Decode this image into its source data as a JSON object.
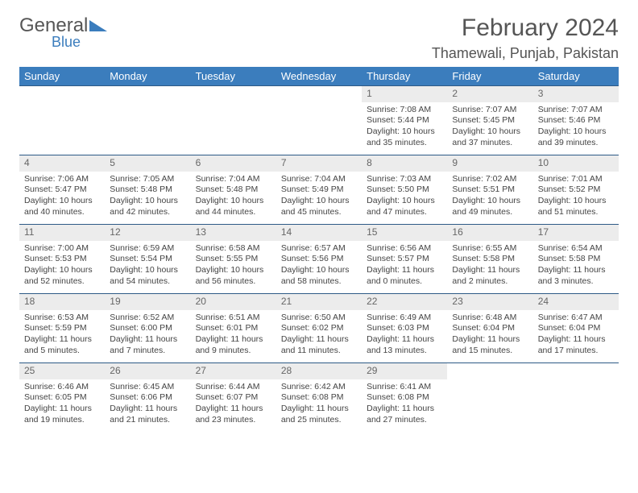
{
  "brand": {
    "general": "General",
    "blue": "Blue"
  },
  "title": "February 2024",
  "location": "Thamewali, Punjab, Pakistan",
  "colors": {
    "header_bg": "#3b7dbd",
    "daynum_bg": "#ececec",
    "rule": "#2d5a86",
    "text": "#444444"
  },
  "day_headers": [
    "Sunday",
    "Monday",
    "Tuesday",
    "Wednesday",
    "Thursday",
    "Friday",
    "Saturday"
  ],
  "weeks": [
    [
      null,
      null,
      null,
      null,
      {
        "n": "1",
        "sr": "Sunrise: 7:08 AM",
        "ss": "Sunset: 5:44 PM",
        "dl1": "Daylight: 10 hours",
        "dl2": "and 35 minutes."
      },
      {
        "n": "2",
        "sr": "Sunrise: 7:07 AM",
        "ss": "Sunset: 5:45 PM",
        "dl1": "Daylight: 10 hours",
        "dl2": "and 37 minutes."
      },
      {
        "n": "3",
        "sr": "Sunrise: 7:07 AM",
        "ss": "Sunset: 5:46 PM",
        "dl1": "Daylight: 10 hours",
        "dl2": "and 39 minutes."
      }
    ],
    [
      {
        "n": "4",
        "sr": "Sunrise: 7:06 AM",
        "ss": "Sunset: 5:47 PM",
        "dl1": "Daylight: 10 hours",
        "dl2": "and 40 minutes."
      },
      {
        "n": "5",
        "sr": "Sunrise: 7:05 AM",
        "ss": "Sunset: 5:48 PM",
        "dl1": "Daylight: 10 hours",
        "dl2": "and 42 minutes."
      },
      {
        "n": "6",
        "sr": "Sunrise: 7:04 AM",
        "ss": "Sunset: 5:48 PM",
        "dl1": "Daylight: 10 hours",
        "dl2": "and 44 minutes."
      },
      {
        "n": "7",
        "sr": "Sunrise: 7:04 AM",
        "ss": "Sunset: 5:49 PM",
        "dl1": "Daylight: 10 hours",
        "dl2": "and 45 minutes."
      },
      {
        "n": "8",
        "sr": "Sunrise: 7:03 AM",
        "ss": "Sunset: 5:50 PM",
        "dl1": "Daylight: 10 hours",
        "dl2": "and 47 minutes."
      },
      {
        "n": "9",
        "sr": "Sunrise: 7:02 AM",
        "ss": "Sunset: 5:51 PM",
        "dl1": "Daylight: 10 hours",
        "dl2": "and 49 minutes."
      },
      {
        "n": "10",
        "sr": "Sunrise: 7:01 AM",
        "ss": "Sunset: 5:52 PM",
        "dl1": "Daylight: 10 hours",
        "dl2": "and 51 minutes."
      }
    ],
    [
      {
        "n": "11",
        "sr": "Sunrise: 7:00 AM",
        "ss": "Sunset: 5:53 PM",
        "dl1": "Daylight: 10 hours",
        "dl2": "and 52 minutes."
      },
      {
        "n": "12",
        "sr": "Sunrise: 6:59 AM",
        "ss": "Sunset: 5:54 PM",
        "dl1": "Daylight: 10 hours",
        "dl2": "and 54 minutes."
      },
      {
        "n": "13",
        "sr": "Sunrise: 6:58 AM",
        "ss": "Sunset: 5:55 PM",
        "dl1": "Daylight: 10 hours",
        "dl2": "and 56 minutes."
      },
      {
        "n": "14",
        "sr": "Sunrise: 6:57 AM",
        "ss": "Sunset: 5:56 PM",
        "dl1": "Daylight: 10 hours",
        "dl2": "and 58 minutes."
      },
      {
        "n": "15",
        "sr": "Sunrise: 6:56 AM",
        "ss": "Sunset: 5:57 PM",
        "dl1": "Daylight: 11 hours",
        "dl2": "and 0 minutes."
      },
      {
        "n": "16",
        "sr": "Sunrise: 6:55 AM",
        "ss": "Sunset: 5:58 PM",
        "dl1": "Daylight: 11 hours",
        "dl2": "and 2 minutes."
      },
      {
        "n": "17",
        "sr": "Sunrise: 6:54 AM",
        "ss": "Sunset: 5:58 PM",
        "dl1": "Daylight: 11 hours",
        "dl2": "and 3 minutes."
      }
    ],
    [
      {
        "n": "18",
        "sr": "Sunrise: 6:53 AM",
        "ss": "Sunset: 5:59 PM",
        "dl1": "Daylight: 11 hours",
        "dl2": "and 5 minutes."
      },
      {
        "n": "19",
        "sr": "Sunrise: 6:52 AM",
        "ss": "Sunset: 6:00 PM",
        "dl1": "Daylight: 11 hours",
        "dl2": "and 7 minutes."
      },
      {
        "n": "20",
        "sr": "Sunrise: 6:51 AM",
        "ss": "Sunset: 6:01 PM",
        "dl1": "Daylight: 11 hours",
        "dl2": "and 9 minutes."
      },
      {
        "n": "21",
        "sr": "Sunrise: 6:50 AM",
        "ss": "Sunset: 6:02 PM",
        "dl1": "Daylight: 11 hours",
        "dl2": "and 11 minutes."
      },
      {
        "n": "22",
        "sr": "Sunrise: 6:49 AM",
        "ss": "Sunset: 6:03 PM",
        "dl1": "Daylight: 11 hours",
        "dl2": "and 13 minutes."
      },
      {
        "n": "23",
        "sr": "Sunrise: 6:48 AM",
        "ss": "Sunset: 6:04 PM",
        "dl1": "Daylight: 11 hours",
        "dl2": "and 15 minutes."
      },
      {
        "n": "24",
        "sr": "Sunrise: 6:47 AM",
        "ss": "Sunset: 6:04 PM",
        "dl1": "Daylight: 11 hours",
        "dl2": "and 17 minutes."
      }
    ],
    [
      {
        "n": "25",
        "sr": "Sunrise: 6:46 AM",
        "ss": "Sunset: 6:05 PM",
        "dl1": "Daylight: 11 hours",
        "dl2": "and 19 minutes."
      },
      {
        "n": "26",
        "sr": "Sunrise: 6:45 AM",
        "ss": "Sunset: 6:06 PM",
        "dl1": "Daylight: 11 hours",
        "dl2": "and 21 minutes."
      },
      {
        "n": "27",
        "sr": "Sunrise: 6:44 AM",
        "ss": "Sunset: 6:07 PM",
        "dl1": "Daylight: 11 hours",
        "dl2": "and 23 minutes."
      },
      {
        "n": "28",
        "sr": "Sunrise: 6:42 AM",
        "ss": "Sunset: 6:08 PM",
        "dl1": "Daylight: 11 hours",
        "dl2": "and 25 minutes."
      },
      {
        "n": "29",
        "sr": "Sunrise: 6:41 AM",
        "ss": "Sunset: 6:08 PM",
        "dl1": "Daylight: 11 hours",
        "dl2": "and 27 minutes."
      },
      null,
      null
    ]
  ]
}
